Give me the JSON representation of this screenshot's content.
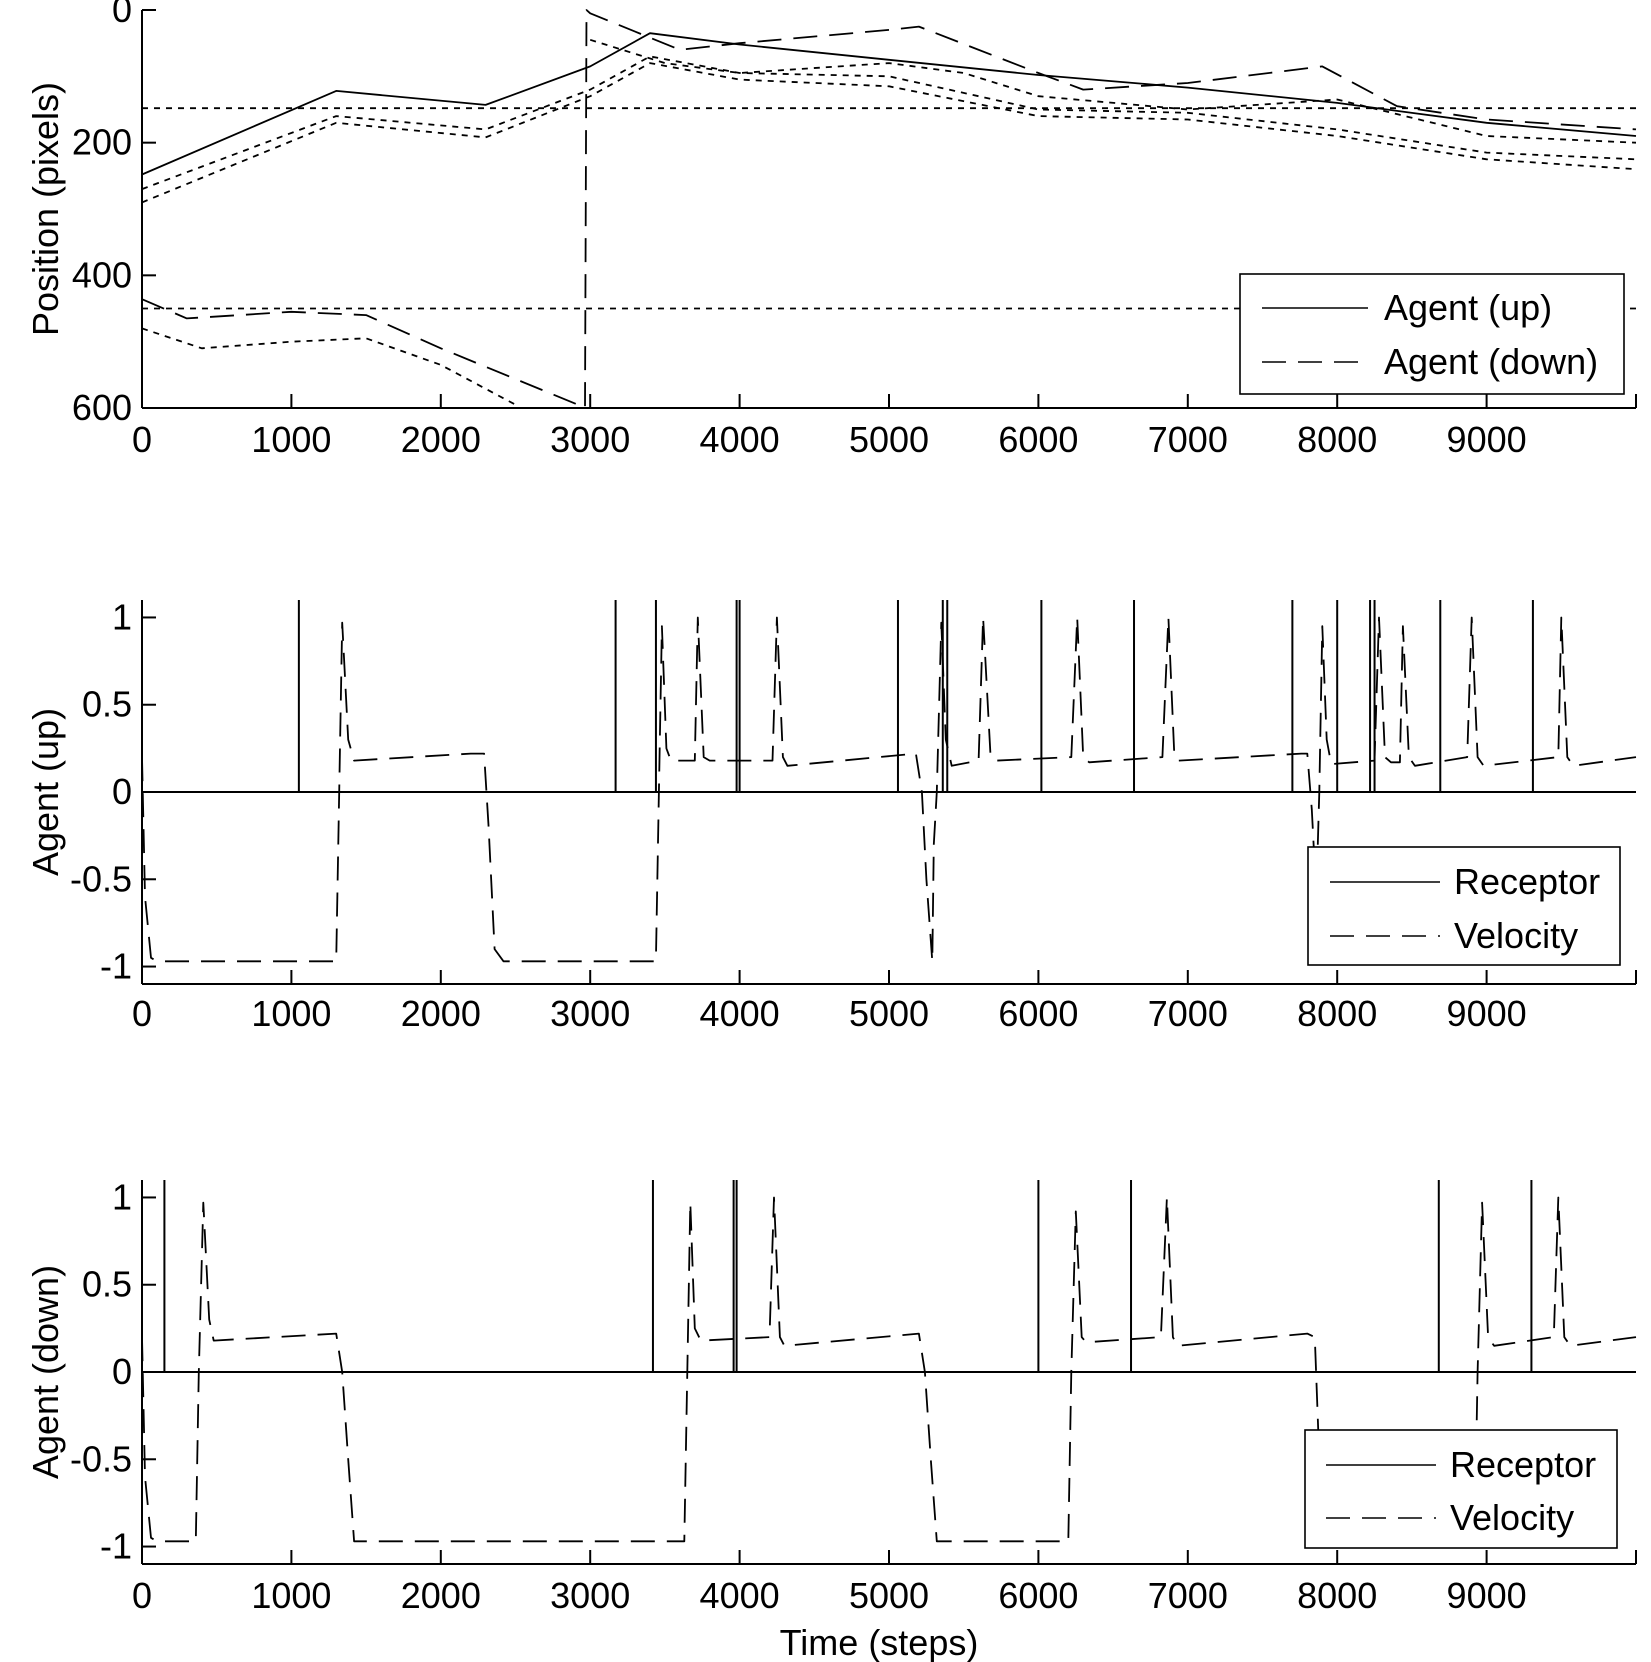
{
  "chart_data": [
    {
      "type": "line",
      "ylabel": "Position (pixels)",
      "xlabel": "",
      "xlim": [
        0,
        10000
      ],
      "ylim": [
        0,
        600
      ],
      "y_reversed": true,
      "xticks": [
        0,
        1000,
        2000,
        3000,
        4000,
        5000,
        6000,
        7000,
        8000,
        9000
      ],
      "yticks": [
        0,
        200,
        400,
        600
      ],
      "xtick_labels": [
        "0",
        "1000",
        "2000",
        "3000",
        "4000",
        "5000",
        "6000",
        "7000",
        "8000",
        "9000"
      ],
      "ytick_labels": [
        "0",
        "200",
        "400",
        "600"
      ],
      "legend": {
        "placement": "bottom-right",
        "entries": [
          "Agent (up)",
          "Agent (down)"
        ]
      },
      "series": [
        {
          "name": "Agent (up)",
          "style": "solid",
          "points": [
            [
              0,
              248
            ],
            [
              1300,
              122
            ],
            [
              2300,
              143
            ],
            [
              3000,
              85
            ],
            [
              3400,
              35
            ],
            [
              4000,
              52
            ],
            [
              5000,
              75
            ],
            [
              6000,
              98
            ],
            [
              7000,
              117
            ],
            [
              8000,
              140
            ],
            [
              9000,
              170
            ],
            [
              10000,
              190
            ]
          ]
        },
        {
          "name": "Agent (down)",
          "style": "dashed",
          "points": [
            [
              0,
              436
            ],
            [
              300,
              465
            ],
            [
              1000,
              455
            ],
            [
              1500,
              460
            ],
            [
              2000,
              510
            ],
            [
              2950,
              598
            ],
            [
              2965,
              600
            ],
            [
              2975,
              0
            ],
            [
              3000,
              5
            ],
            [
              3600,
              60
            ],
            [
              4000,
              50
            ],
            [
              5000,
              30
            ],
            [
              5200,
              25
            ],
            [
              6000,
              95
            ],
            [
              6300,
              120
            ],
            [
              7000,
              110
            ],
            [
              7900,
              85
            ],
            [
              8400,
              145
            ],
            [
              9000,
              165
            ],
            [
              10000,
              180
            ]
          ]
        },
        {
          "name": "receptor-up-1",
          "style": "dotted",
          "points": [
            [
              0,
              290
            ],
            [
              1300,
              170
            ],
            [
              2300,
              192
            ],
            [
              3000,
              130
            ],
            [
              3400,
              80
            ],
            [
              4000,
              105
            ],
            [
              5000,
              115
            ],
            [
              6000,
              160
            ],
            [
              7000,
              165
            ],
            [
              8000,
              190
            ],
            [
              9000,
              225
            ],
            [
              10000,
              240
            ]
          ]
        },
        {
          "name": "receptor-up-2",
          "style": "dotted",
          "points": [
            [
              0,
              270
            ],
            [
              1300,
              160
            ],
            [
              2300,
              180
            ],
            [
              3000,
              120
            ],
            [
              3400,
              70
            ],
            [
              4000,
              95
            ],
            [
              5000,
              100
            ],
            [
              6000,
              150
            ],
            [
              7000,
              155
            ],
            [
              8000,
              180
            ],
            [
              9000,
              215
            ],
            [
              10000,
              225
            ]
          ]
        },
        {
          "name": "receptor-down-1",
          "style": "dotted",
          "points": [
            [
              0,
              480
            ],
            [
              400,
              510
            ],
            [
              1000,
              500
            ],
            [
              1500,
              495
            ],
            [
              2000,
              535
            ],
            [
              2500,
              595
            ]
          ]
        },
        {
          "name": "receptor-down-2",
          "style": "dotted",
          "points": [
            [
              3000,
              45
            ],
            [
              3500,
              80
            ],
            [
              4000,
              95
            ],
            [
              5000,
              80
            ],
            [
              5500,
              95
            ],
            [
              6000,
              130
            ],
            [
              7000,
              150
            ],
            [
              8000,
              135
            ],
            [
              9000,
              190
            ],
            [
              10000,
              200
            ]
          ]
        },
        {
          "name": "reference-line-150",
          "style": "dotted",
          "points": [
            [
              0,
              148
            ],
            [
              10000,
              148
            ]
          ]
        },
        {
          "name": "reference-line-450",
          "style": "dotted",
          "points": [
            [
              0,
              450
            ],
            [
              10000,
              450
            ]
          ]
        }
      ]
    },
    {
      "type": "line",
      "ylabel": "Agent (up)",
      "xlabel": "",
      "xlim": [
        0,
        10000
      ],
      "ylim": [
        -1.1,
        1.1
      ],
      "xticks": [
        0,
        1000,
        2000,
        3000,
        4000,
        5000,
        6000,
        7000,
        8000,
        9000
      ],
      "yticks": [
        -1,
        -0.5,
        0,
        0.5,
        1
      ],
      "xtick_labels": [
        "0",
        "1000",
        "2000",
        "3000",
        "4000",
        "5000",
        "6000",
        "7000",
        "8000",
        "9000"
      ],
      "ytick_labels": [
        "-1",
        "-0.5",
        "0",
        "0.5",
        "1"
      ],
      "legend": {
        "placement": "bottom-right",
        "entries": [
          "Receptor",
          "Velocity"
        ]
      },
      "receptor_spikes": [
        1050,
        3170,
        3440,
        3980,
        4000,
        5060,
        5360,
        5390,
        6020,
        6640,
        7700,
        8000,
        8220,
        8250,
        8690,
        9310
      ],
      "series": [
        {
          "name": "Velocity",
          "style": "dashed",
          "points": [
            [
              0,
              0.2
            ],
            [
              20,
              -0.6
            ],
            [
              60,
              -0.95
            ],
            [
              100,
              -0.97
            ],
            [
              1300,
              -0.97
            ],
            [
              1320,
              0.0
            ],
            [
              1340,
              0.97
            ],
            [
              1380,
              0.3
            ],
            [
              1420,
              0.18
            ],
            [
              2200,
              0.22
            ],
            [
              2290,
              0.22
            ],
            [
              2320,
              -0.2
            ],
            [
              2360,
              -0.9
            ],
            [
              2420,
              -0.97
            ],
            [
              3440,
              -0.97
            ],
            [
              3460,
              0.0
            ],
            [
              3480,
              0.95
            ],
            [
              3510,
              0.25
            ],
            [
              3540,
              0.18
            ],
            [
              3700,
              0.18
            ],
            [
              3720,
              1.0
            ],
            [
              3760,
              0.2
            ],
            [
              3800,
              0.18
            ],
            [
              4220,
              0.18
            ],
            [
              4250,
              1.0
            ],
            [
              4290,
              0.2
            ],
            [
              4320,
              0.15
            ],
            [
              5180,
              0.22
            ],
            [
              5220,
              0.0
            ],
            [
              5250,
              -0.5
            ],
            [
              5290,
              -0.97
            ],
            [
              5300,
              -0.3
            ],
            [
              5320,
              0.0
            ],
            [
              5350,
              0.97
            ],
            [
              5380,
              0.3
            ],
            [
              5420,
              0.15
            ],
            [
              5600,
              0.18
            ],
            [
              5630,
              1.0
            ],
            [
              5680,
              0.2
            ],
            [
              5720,
              0.18
            ],
            [
              6220,
              0.2
            ],
            [
              6260,
              1.0
            ],
            [
              6300,
              0.2
            ],
            [
              6340,
              0.17
            ],
            [
              6830,
              0.2
            ],
            [
              6870,
              1.0
            ],
            [
              6910,
              0.2
            ],
            [
              6940,
              0.18
            ],
            [
              7760,
              0.22
            ],
            [
              7800,
              0.22
            ],
            [
              7830,
              -0.1
            ],
            [
              7860,
              -0.6
            ],
            [
              7880,
              0.0
            ],
            [
              7900,
              0.95
            ],
            [
              7930,
              0.3
            ],
            [
              7960,
              0.16
            ],
            [
              8250,
              0.18
            ],
            [
              8280,
              1.0
            ],
            [
              8320,
              0.2
            ],
            [
              8360,
              0.17
            ],
            [
              8420,
              0.17
            ],
            [
              8440,
              0.95
            ],
            [
              8480,
              0.2
            ],
            [
              8520,
              0.15
            ],
            [
              8870,
              0.2
            ],
            [
              8900,
              1.0
            ],
            [
              8940,
              0.2
            ],
            [
              8980,
              0.15
            ],
            [
              9480,
              0.2
            ],
            [
              9500,
              1.0
            ],
            [
              9540,
              0.2
            ],
            [
              9580,
              0.15
            ],
            [
              10000,
              0.2
            ]
          ]
        }
      ]
    },
    {
      "type": "line",
      "ylabel": "Agent (down)",
      "xlabel": "Time (steps)",
      "xlim": [
        0,
        10000
      ],
      "ylim": [
        -1.1,
        1.1
      ],
      "xticks": [
        0,
        1000,
        2000,
        3000,
        4000,
        5000,
        6000,
        7000,
        8000,
        9000
      ],
      "yticks": [
        -1,
        -0.5,
        0,
        0.5,
        1
      ],
      "xtick_labels": [
        "0",
        "1000",
        "2000",
        "3000",
        "4000",
        "5000",
        "6000",
        "7000",
        "8000",
        "9000"
      ],
      "ytick_labels": [
        "-1",
        "-0.5",
        "0",
        "0.5",
        "1"
      ],
      "legend": {
        "placement": "bottom-right",
        "entries": [
          "Receptor",
          "Velocity"
        ]
      },
      "receptor_spikes": [
        150,
        3420,
        3960,
        3980,
        6000,
        6620,
        8680,
        9300
      ],
      "series": [
        {
          "name": "Velocity",
          "style": "dashed",
          "points": [
            [
              0,
              0.2
            ],
            [
              20,
              -0.6
            ],
            [
              60,
              -0.95
            ],
            [
              100,
              -0.97
            ],
            [
              360,
              -0.97
            ],
            [
              380,
              0.0
            ],
            [
              410,
              0.97
            ],
            [
              450,
              0.3
            ],
            [
              480,
              0.18
            ],
            [
              1300,
              0.22
            ],
            [
              1340,
              0.0
            ],
            [
              1380,
              -0.5
            ],
            [
              1420,
              -0.97
            ],
            [
              3630,
              -0.97
            ],
            [
              3650,
              0.0
            ],
            [
              3670,
              0.97
            ],
            [
              3700,
              0.25
            ],
            [
              3740,
              0.18
            ],
            [
              4200,
              0.2
            ],
            [
              4230,
              1.0
            ],
            [
              4270,
              0.2
            ],
            [
              4300,
              0.15
            ],
            [
              5200,
              0.22
            ],
            [
              5240,
              0.0
            ],
            [
              5280,
              -0.5
            ],
            [
              5320,
              -0.97
            ],
            [
              6200,
              -0.97
            ],
            [
              6220,
              0.0
            ],
            [
              6250,
              0.92
            ],
            [
              6290,
              0.2
            ],
            [
              6320,
              0.17
            ],
            [
              6820,
              0.2
            ],
            [
              6860,
              1.0
            ],
            [
              6900,
              0.2
            ],
            [
              6930,
              0.15
            ],
            [
              7800,
              0.22
            ],
            [
              7850,
              0.2
            ],
            [
              7880,
              -0.5
            ],
            [
              7900,
              -0.97
            ],
            [
              8920,
              -0.97
            ],
            [
              8940,
              0.0
            ],
            [
              8970,
              0.97
            ],
            [
              9010,
              0.2
            ],
            [
              9050,
              0.15
            ],
            [
              9450,
              0.2
            ],
            [
              9480,
              1.0
            ],
            [
              9520,
              0.2
            ],
            [
              9560,
              0.15
            ],
            [
              10000,
              0.2
            ]
          ]
        }
      ]
    }
  ]
}
